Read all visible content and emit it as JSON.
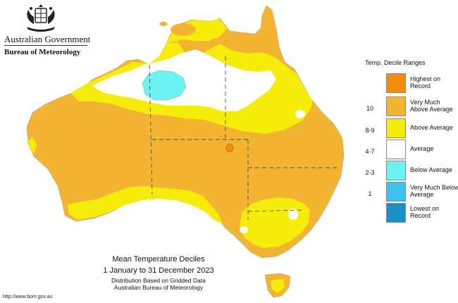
{
  "header": {
    "government": "Australian Government",
    "bureau": "Bureau of Meteorology"
  },
  "legend": {
    "title": "Temp. Decile Ranges",
    "rows": [
      {
        "range": "",
        "label": "Highest on Record",
        "color": "#f28c0c"
      },
      {
        "range": "10",
        "label": "Very Much Above Average",
        "color": "#f2b431"
      },
      {
        "range": "8-9",
        "label": "Above Average",
        "color": "#f5ec0a"
      },
      {
        "range": "4-7",
        "label": "Average",
        "color": "#ffffff"
      },
      {
        "range": "2-3",
        "label": "Below Average",
        "color": "#6cf2f2"
      },
      {
        "range": "1",
        "label": "Very Much Below Average",
        "color": "#3cc3ef"
      },
      {
        "range": "",
        "label": "Lowest on Record",
        "color": "#1a8fc8"
      }
    ]
  },
  "map_title": {
    "line1": "Mean Temperature Deciles",
    "line2": "1 January to 31 December 2023",
    "line3": "Distribution Based on Gridded Data",
    "line4": "Australian Bureau of Meteorology"
  },
  "footer_url": "http://www.bom.gov.au"
}
